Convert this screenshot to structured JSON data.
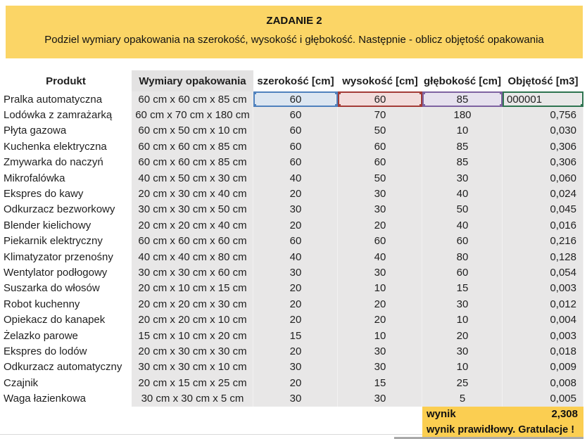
{
  "banner": {
    "title": "ZADANIE 2",
    "subtitle": "Podziel wymiary opakowania na szerokość, wysokość i głębokość. Następnie - oblicz objętość opakowania",
    "bg": "#fbd566"
  },
  "table": {
    "headers": [
      "Produkt",
      "Wymiary opakowania",
      "szerokość [cm]",
      "wysokość [cm]",
      "głębokość [cm]",
      "Objętość [m3]"
    ],
    "rows": [
      {
        "product": "Pralka automatyczna",
        "dimensions": "60 cm x 60 cm x 85 cm",
        "width": "60",
        "height": "60",
        "depth": "85",
        "volume": "000001"
      },
      {
        "product": "Lodówka z zamrażarką",
        "dimensions": "60 cm x 70 cm x 180 cm",
        "width": "60",
        "height": "70",
        "depth": "180",
        "volume": "0,756"
      },
      {
        "product": "Płyta gazowa",
        "dimensions": "60 cm x 50 cm x 10 cm",
        "width": "60",
        "height": "50",
        "depth": "10",
        "volume": "0,030"
      },
      {
        "product": "Kuchenka elektryczna",
        "dimensions": "60 cm x 60 cm x 85 cm",
        "width": "60",
        "height": "60",
        "depth": "85",
        "volume": "0,306"
      },
      {
        "product": "Zmywarka do naczyń",
        "dimensions": "60 cm x 60 cm x 85 cm",
        "width": "60",
        "height": "60",
        "depth": "85",
        "volume": "0,306"
      },
      {
        "product": "Mikrofalówka",
        "dimensions": "40 cm x 50 cm x 30 cm",
        "width": "40",
        "height": "50",
        "depth": "30",
        "volume": "0,060"
      },
      {
        "product": "Ekspres do kawy",
        "dimensions": "20 cm x 30 cm x 40 cm",
        "width": "20",
        "height": "30",
        "depth": "40",
        "volume": "0,024"
      },
      {
        "product": "Odkurzacz bezworkowy",
        "dimensions": "30 cm x 30 cm x 50 cm",
        "width": "30",
        "height": "30",
        "depth": "50",
        "volume": "0,045"
      },
      {
        "product": "Blender kielichowy",
        "dimensions": "20 cm x 20 cm x 40 cm",
        "width": "20",
        "height": "20",
        "depth": "40",
        "volume": "0,016"
      },
      {
        "product": "Piekarnik elektryczny",
        "dimensions": "60 cm x 60 cm x 60 cm",
        "width": "60",
        "height": "60",
        "depth": "60",
        "volume": "0,216"
      },
      {
        "product": "Klimatyzator przenośny",
        "dimensions": "40 cm x 40 cm x 80 cm",
        "width": "40",
        "height": "40",
        "depth": "80",
        "volume": "0,128"
      },
      {
        "product": "Wentylator podłogowy",
        "dimensions": "30 cm x 30 cm x 60 cm",
        "width": "30",
        "height": "30",
        "depth": "60",
        "volume": "0,054"
      },
      {
        "product": "Suszarka do włosów",
        "dimensions": "20 cm x 10 cm x 15 cm",
        "width": "20",
        "height": "10",
        "depth": "15",
        "volume": "0,003"
      },
      {
        "product": "Robot kuchenny",
        "dimensions": "20 cm x 20 cm x 30 cm",
        "width": "20",
        "height": "20",
        "depth": "30",
        "volume": "0,012"
      },
      {
        "product": "Opiekacz do kanapek",
        "dimensions": "20 cm x 20 cm x 10 cm",
        "width": "20",
        "height": "20",
        "depth": "10",
        "volume": "0,004"
      },
      {
        "product": "Żelazko parowe",
        "dimensions": "15 cm x 10 cm x 20 cm",
        "width": "15",
        "height": "10",
        "depth": "20",
        "volume": "0,003"
      },
      {
        "product": "Ekspres do lodów",
        "dimensions": "20 cm x 30 cm x 30 cm",
        "width": "20",
        "height": "30",
        "depth": "30",
        "volume": "0,018"
      },
      {
        "product": "Odkurzacz automatyczny",
        "dimensions": "30 cm x 30 cm x 10 cm",
        "width": "30",
        "height": "30",
        "depth": "10",
        "volume": "0,009"
      },
      {
        "product": "Czajnik",
        "dimensions": "20 cm x 15 cm x 25 cm",
        "width": "20",
        "height": "15",
        "depth": "25",
        "volume": "0,008"
      },
      {
        "product": "Waga łazienkowa",
        "dimensions": "30 cm x 30 cm x 5 cm",
        "width": "30",
        "height": "30",
        "depth": "5",
        "volume": "0,005"
      }
    ]
  },
  "selection": {
    "editing_value": "000001",
    "width_border": "#4f81bd",
    "height_border": "#a33c37",
    "depth_border": "#7e62a1",
    "volume_border": "#2f7450",
    "width_fill": "#dce6f1",
    "height_fill": "#f2dddc",
    "depth_fill": "#e6e1ee"
  },
  "footer": {
    "result_label": "wynik",
    "result_value": "2,308",
    "message": "wynik prawidłowy. Gratulacje !",
    "bg": "#fbce51"
  }
}
